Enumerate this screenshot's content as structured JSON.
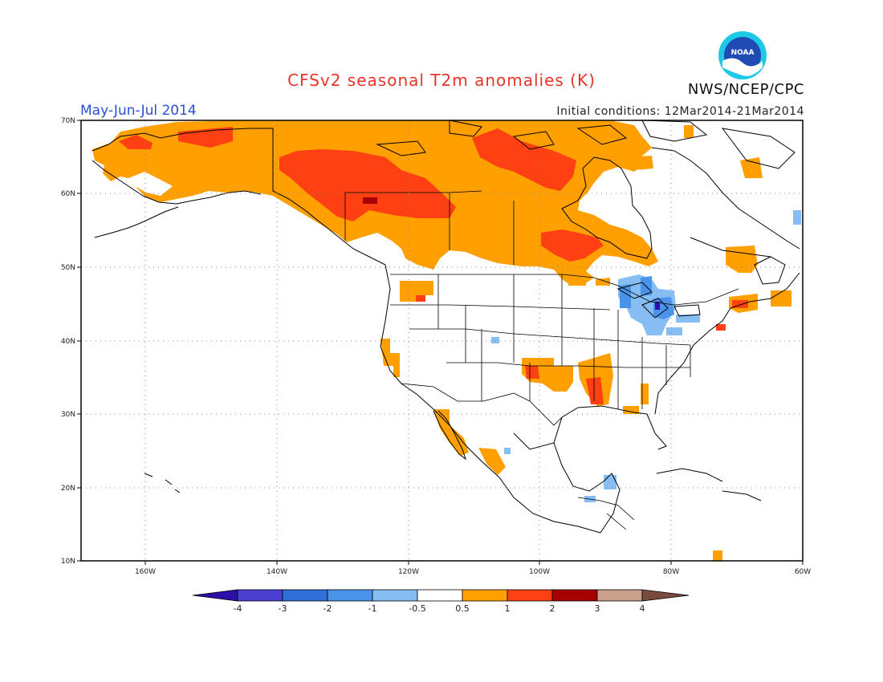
{
  "header": {
    "title": "CFSv2 seasonal T2m anomalies (K)",
    "period": "May-Jun-Jul 2014",
    "initial_conditions": "Initial conditions: 12Mar2014-21Mar2014",
    "agency": "NWS/NCEP/CPC",
    "logo_text": "NOAA"
  },
  "map": {
    "lat_labels": [
      "70N",
      "60N",
      "50N",
      "40N",
      "30N",
      "20N",
      "10N"
    ],
    "lon_labels": [
      "160W",
      "140W",
      "120W",
      "100W",
      "80W",
      "60W"
    ],
    "lon_range": [
      -172,
      -60
    ],
    "lat_range": [
      10,
      70
    ],
    "gridlines": "dotted"
  },
  "colorbar": {
    "labels": [
      "-4",
      "-3",
      "-2",
      "-1",
      "-0.5",
      "0.5",
      "1",
      "2",
      "3",
      "4"
    ],
    "colors": [
      "#2b0fa8",
      "#4b3fd1",
      "#2f6fd8",
      "#4a93ea",
      "#86bdf2",
      "#ffffff",
      "#ff9f00",
      "#ff4012",
      "#a70000",
      "#c9a08c",
      "#7a4b3c"
    ]
  }
}
